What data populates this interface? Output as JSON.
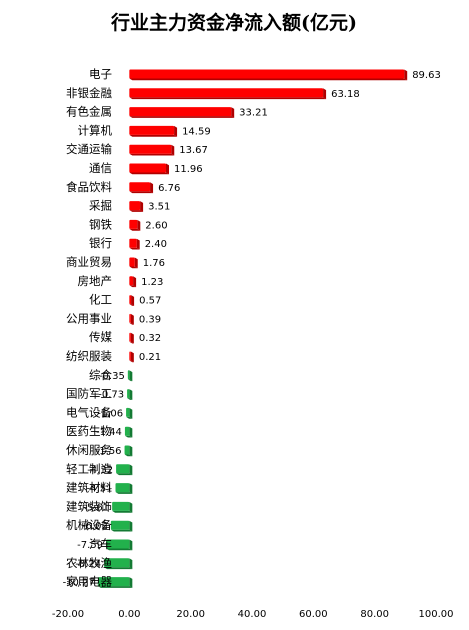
{
  "chart_data": {
    "type": "bar",
    "orientation": "horizontal",
    "title": "行业主力资金净流入额(亿元)",
    "xlabel": "",
    "ylabel": "",
    "xlim": [
      -20,
      100
    ],
    "ticks": [
      -20,
      0,
      20,
      40,
      60,
      80,
      100
    ],
    "tick_labels": [
      "-20.00",
      "0.00",
      "20.00",
      "40.00",
      "60.00",
      "80.00",
      "100.00"
    ],
    "grid": false,
    "legend": "none",
    "colors": {
      "positive": "#ff0000",
      "positive_shade": "#b00000",
      "negative": "#22b14c",
      "negative_shade": "#137a33"
    },
    "categories": [
      "电子",
      "非银金融",
      "有色金属",
      "计算机",
      "交通运输",
      "通信",
      "食品饮料",
      "采掘",
      "钢铁",
      "银行",
      "商业贸易",
      "房地产",
      "化工",
      "公用事业",
      "传媒",
      "纺织服装",
      "综合",
      "国防军工",
      "电气设备",
      "医药生物",
      "休闲服务",
      "轻工制造",
      "建筑材料",
      "建筑装饰",
      "机械设备",
      "汽车",
      "农林牧渔",
      "家用电器"
    ],
    "values": [
      89.63,
      63.18,
      33.21,
      14.59,
      13.67,
      11.96,
      6.76,
      3.51,
      2.6,
      2.4,
      1.76,
      1.23,
      0.57,
      0.39,
      0.32,
      0.21,
      -0.35,
      -0.73,
      -1.06,
      -1.44,
      -1.56,
      -4.32,
      -4.51,
      -5.61,
      -6.02,
      -7.59,
      -8.24,
      -10.27
    ],
    "value_labels": [
      "89.63",
      "63.18",
      "33.21",
      "14.59",
      "13.67",
      "11.96",
      "6.76",
      "3.51",
      "2.60",
      "2.40",
      "1.76",
      "1.23",
      "0.57",
      "0.39",
      "0.32",
      "0.21",
      "-0.35",
      "-0.73",
      "-1.06",
      "-1.44",
      "-1.56",
      "-4.32",
      "-4.51",
      "-5.61",
      "-6.02",
      "-7.59",
      "-8.24",
      "-10.27"
    ]
  }
}
